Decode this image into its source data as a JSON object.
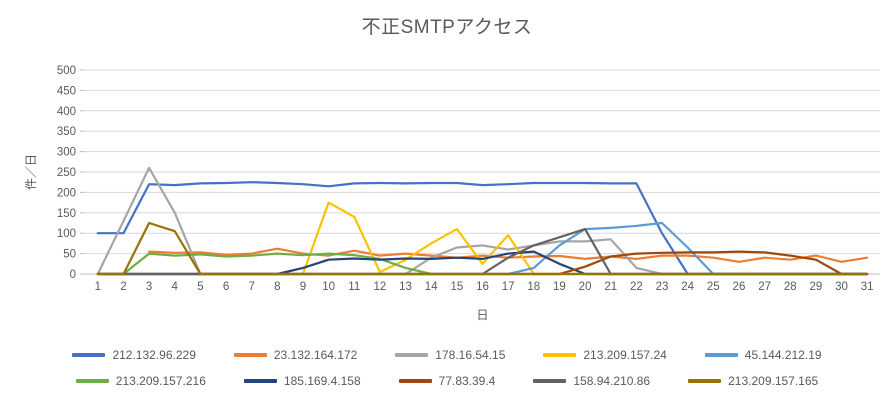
{
  "title": "不正SMTPアクセス",
  "axes": {
    "y_title": "件／日",
    "x_title": "日",
    "y_tick_labels": [
      "0",
      "50",
      "100",
      "150",
      "200",
      "250",
      "300",
      "350",
      "400",
      "450",
      "500"
    ],
    "x_tick_labels": [
      "1",
      "2",
      "3",
      "4",
      "5",
      "6",
      "7",
      "8",
      "9",
      "10",
      "11",
      "12",
      "13",
      "14",
      "15",
      "16",
      "17",
      "18",
      "19",
      "20",
      "21",
      "22",
      "23",
      "24",
      "25",
      "26",
      "27",
      "28",
      "29",
      "30",
      "31"
    ]
  },
  "colors": {
    "title_text": "#595959",
    "axis_text": "#595959",
    "gridline": "#D9D9D9",
    "axis_line": "#BFBFBF",
    "background": "#FFFFFF"
  },
  "chart_data": {
    "type": "line",
    "title": "不正SMTPアクセス",
    "xlabel": "日",
    "ylabel": "件／日",
    "x": [
      1,
      2,
      3,
      4,
      5,
      6,
      7,
      8,
      9,
      10,
      11,
      12,
      13,
      14,
      15,
      16,
      17,
      18,
      19,
      20,
      21,
      22,
      23,
      24,
      25,
      26,
      27,
      28,
      29,
      30,
      31
    ],
    "ylim": [
      0,
      500
    ],
    "ytick_step": 50,
    "grid": true,
    "legend_position": "bottom",
    "series": [
      {
        "name": "212.132.96.229",
        "color": "#4472C4",
        "values": [
          100,
          100,
          220,
          218,
          222,
          223,
          225,
          223,
          220,
          215,
          222,
          223,
          222,
          223,
          223,
          218,
          220,
          223,
          223,
          223,
          222,
          222,
          100,
          0,
          0,
          0,
          0,
          0,
          0,
          0,
          0
        ]
      },
      {
        "name": "23.132.164.172",
        "color": "#ED7D31",
        "values": [
          null,
          null,
          55,
          52,
          53,
          47,
          50,
          62,
          50,
          45,
          57,
          45,
          50,
          45,
          40,
          45,
          40,
          43,
          44,
          37,
          43,
          37,
          45,
          45,
          40,
          30,
          40,
          35,
          45,
          30,
          40
        ]
      },
      {
        "name": "178.16.54.15",
        "color": "#A5A5A5",
        "values": [
          0,
          130,
          260,
          150,
          0,
          0,
          0,
          0,
          0,
          0,
          0,
          0,
          0,
          40,
          65,
          70,
          60,
          70,
          80,
          80,
          85,
          15,
          0,
          0,
          0,
          0,
          0,
          0,
          0,
          0,
          0
        ]
      },
      {
        "name": "213.209.157.24",
        "color": "#FFC000",
        "values": [
          0,
          0,
          0,
          0,
          0,
          0,
          0,
          0,
          0,
          175,
          140,
          5,
          35,
          75,
          110,
          25,
          95,
          0,
          0,
          0,
          0,
          0,
          0,
          0,
          0,
          0,
          0,
          0,
          0,
          0,
          0
        ]
      },
      {
        "name": "45.144.212.19",
        "color": "#5B9BD5",
        "values": [
          0,
          0,
          0,
          0,
          0,
          0,
          0,
          0,
          0,
          0,
          0,
          0,
          0,
          0,
          0,
          0,
          0,
          15,
          70,
          110,
          113,
          118,
          125,
          65,
          0,
          0,
          0,
          0,
          0,
          0,
          0
        ]
      },
      {
        "name": "213.209.157.216",
        "color": "#70AD47",
        "values": [
          0,
          0,
          50,
          45,
          48,
          43,
          45,
          50,
          46,
          50,
          46,
          37,
          15,
          0,
          0,
          0,
          0,
          0,
          0,
          0,
          0,
          0,
          0,
          0,
          0,
          0,
          0,
          0,
          0,
          0,
          0
        ]
      },
      {
        "name": "185.169.4.158",
        "color": "#264478",
        "values": [
          0,
          0,
          0,
          0,
          0,
          0,
          0,
          0,
          15,
          35,
          38,
          35,
          38,
          37,
          40,
          37,
          50,
          55,
          25,
          0,
          0,
          0,
          0,
          0,
          0,
          0,
          0,
          0,
          0,
          0,
          0
        ]
      },
      {
        "name": "77.83.39.4",
        "color": "#9E480E",
        "values": [
          0,
          0,
          0,
          0,
          0,
          0,
          0,
          0,
          0,
          0,
          0,
          0,
          0,
          0,
          0,
          0,
          0,
          0,
          0,
          18,
          43,
          50,
          52,
          53,
          53,
          55,
          53,
          45,
          35,
          0,
          0
        ]
      },
      {
        "name": "158.94.210.86",
        "color": "#636363",
        "values": [
          0,
          0,
          0,
          0,
          0,
          0,
          0,
          0,
          0,
          0,
          0,
          0,
          0,
          0,
          0,
          0,
          40,
          70,
          90,
          110,
          0,
          0,
          0,
          0,
          0,
          0,
          0,
          0,
          0,
          0,
          0
        ]
      },
      {
        "name": "213.209.157.165",
        "color": "#997300",
        "values": [
          0,
          0,
          125,
          105,
          0,
          0,
          0,
          0,
          0,
          0,
          0,
          0,
          0,
          0,
          0,
          0,
          0,
          0,
          0,
          0,
          0,
          0,
          0,
          0,
          0,
          0,
          0,
          0,
          0,
          0,
          0
        ]
      }
    ]
  }
}
